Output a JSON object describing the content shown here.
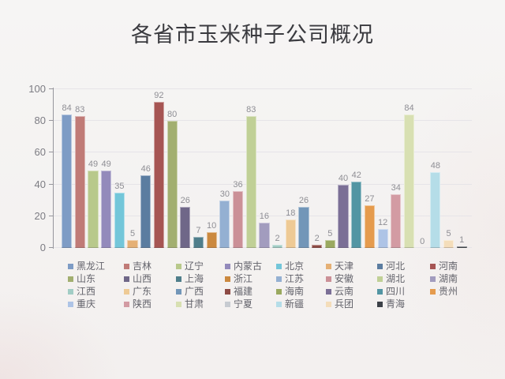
{
  "chart_data": {
    "type": "bar",
    "title": "各省市玉米种子公司概况",
    "categories": [
      "黑龙江",
      "吉林",
      "辽宁",
      "内蒙古",
      "北京",
      "天津",
      "河北",
      "河南",
      "山东",
      "山西",
      "上海",
      "浙江",
      "江苏",
      "安徽",
      "湖北",
      "湖南",
      "江西",
      "广东",
      "广西",
      "福建",
      "海南",
      "云南",
      "四川",
      "贵州",
      "重庆",
      "陕西",
      "甘肃",
      "宁夏",
      "新疆",
      "兵团",
      "青海"
    ],
    "values": [
      84,
      83,
      49,
      49,
      35,
      5,
      46,
      92,
      80,
      26,
      7,
      10,
      30,
      36,
      83,
      16,
      2,
      18,
      26,
      2,
      5,
      40,
      42,
      27,
      12,
      34,
      84,
      0,
      48,
      5,
      1
    ],
    "colors": [
      "#7e9cc5",
      "#c07b77",
      "#b8c98b",
      "#938abb",
      "#73c6d9",
      "#e5b075",
      "#5b7da0",
      "#a65553",
      "#a2af70",
      "#6f6788",
      "#4f7e8b",
      "#cb893f",
      "#94b0d2",
      "#cb9097",
      "#c0d096",
      "#a29cbe",
      "#a2cdc5",
      "#eeca95",
      "#7296b8",
      "#8e4b45",
      "#9aa95f",
      "#7b6f96",
      "#5295a3",
      "#e59b4d",
      "#aec4e6",
      "#d39ba3",
      "#d8e0b2",
      "#c7cbd1",
      "#b5dde8",
      "#f4ddba",
      "#3c4148"
    ],
    "xlabel": "",
    "ylabel": "",
    "ylim": [
      0,
      100
    ],
    "yticks": [
      0,
      20,
      40,
      60,
      80,
      100
    ],
    "grid": true,
    "legend_position": "bottom",
    "legend_columns": 8
  }
}
